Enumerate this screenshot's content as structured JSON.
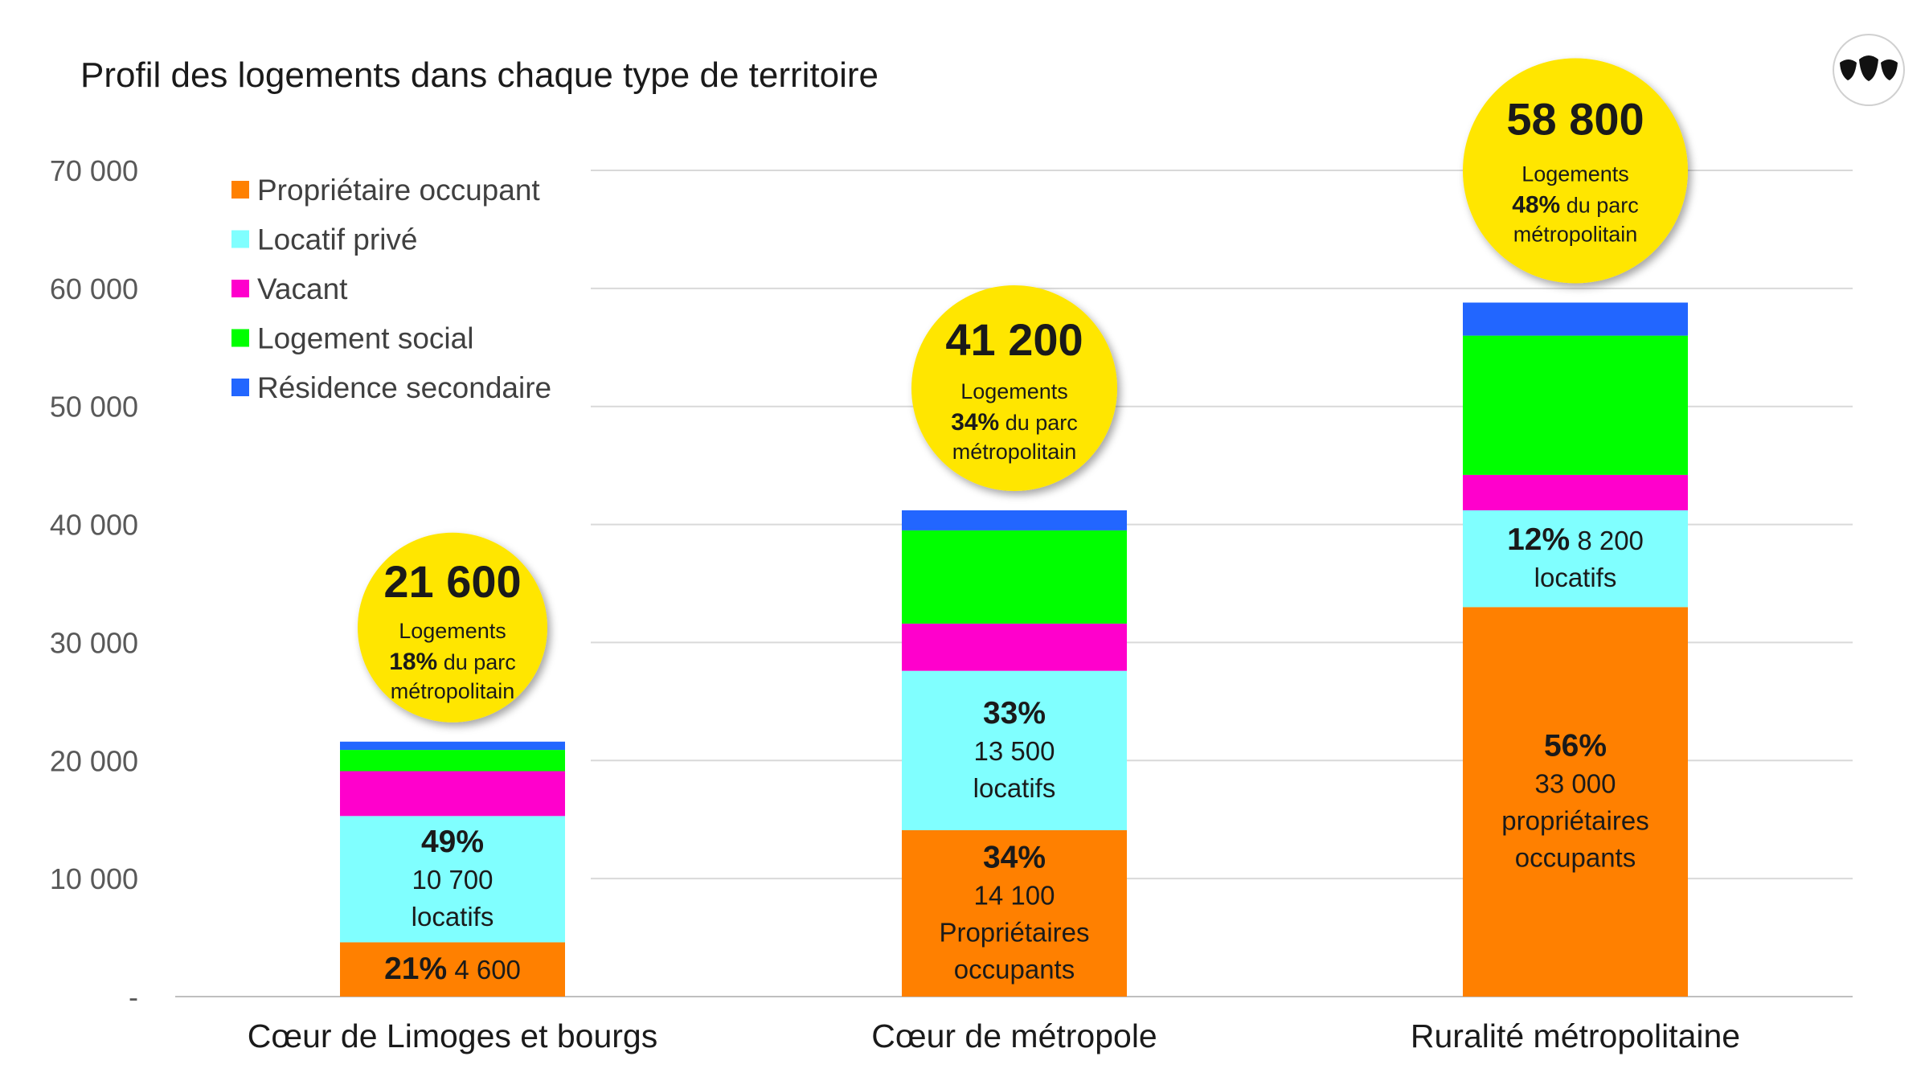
{
  "chart_data": {
    "type": "bar",
    "stacked": true,
    "title": "Profil des logements dans chaque type de territoire",
    "categories": [
      "Cœur de Limoges et bourgs",
      "Cœur de métropole",
      "Ruralité métropolitaine"
    ],
    "y_ticks": [
      "-",
      "10 000",
      "20 000",
      "30 000",
      "40 000",
      "50 000",
      "60 000",
      "70 000"
    ],
    "ylim": [
      0,
      70000
    ],
    "grid": true,
    "legend_position": "top-left",
    "series": [
      {
        "name": "Propriétaire occupant",
        "color": "#FF8000",
        "values": [
          4600,
          14100,
          33000
        ]
      },
      {
        "name": "Locatif privé",
        "color": "#80FFFF",
        "values": [
          10700,
          13500,
          8200
        ]
      },
      {
        "name": "Vacant",
        "color": "#FF00CC",
        "values": [
          3800,
          4000,
          3000
        ]
      },
      {
        "name": "Logement social",
        "color": "#00FF00",
        "values": [
          1800,
          7900,
          11800
        ]
      },
      {
        "name": "Résidence secondaire",
        "color": "#2266FF",
        "values": [
          700,
          1700,
          2800
        ]
      }
    ],
    "segment_labels": [
      [
        {
          "series": 0,
          "lines": [
            [
              {
                "t": "21%",
                "b": true
              },
              {
                "t": " 4 600",
                "b": false
              }
            ]
          ]
        },
        {
          "series": 1,
          "lines": [
            [
              {
                "t": "49%",
                "b": true
              }
            ],
            [
              {
                "t": "10 700",
                "b": false
              }
            ],
            [
              {
                "t": "locatifs",
                "b": false
              }
            ]
          ]
        }
      ],
      [
        {
          "series": 0,
          "lines": [
            [
              {
                "t": "34%",
                "b": true
              }
            ],
            [
              {
                "t": "14 100",
                "b": false
              }
            ],
            [
              {
                "t": "Propriétaires",
                "b": false
              }
            ],
            [
              {
                "t": "occupants",
                "b": false
              }
            ]
          ]
        },
        {
          "series": 1,
          "lines": [
            [
              {
                "t": "33%",
                "b": true
              }
            ],
            [
              {
                "t": "13 500",
                "b": false
              }
            ],
            [
              {
                "t": "locatifs",
                "b": false
              }
            ]
          ]
        }
      ],
      [
        {
          "series": 0,
          "lines": [
            [
              {
                "t": "56%",
                "b": true
              }
            ],
            [
              {
                "t": "33 000",
                "b": false
              }
            ],
            [
              {
                "t": "propriétaires",
                "b": false
              }
            ],
            [
              {
                "t": "occupants",
                "b": false
              }
            ]
          ]
        },
        {
          "series": 1,
          "lines": [
            [
              {
                "t": "12%",
                "b": true
              },
              {
                "t": " 8 200",
                "b": false
              }
            ],
            [
              {
                "t": "locatifs",
                "b": false
              }
            ]
          ]
        }
      ]
    ],
    "totals": [
      {
        "value": "21 600",
        "line1": "Logements",
        "pct": "18%",
        "pct_suffix": " du parc",
        "line3": "métropolitain"
      },
      {
        "value": "41 200",
        "line1": "Logements",
        "pct": "34%",
        "pct_suffix": " du parc",
        "line3": "métropolitain"
      },
      {
        "value": "58 800",
        "line1": "Logements",
        "pct": "48%",
        "pct_suffix": " du parc",
        "line3": "métropolitain"
      }
    ],
    "bubble_color": "#FFE600"
  },
  "logo": {
    "icon": "leaf-logo-icon"
  }
}
